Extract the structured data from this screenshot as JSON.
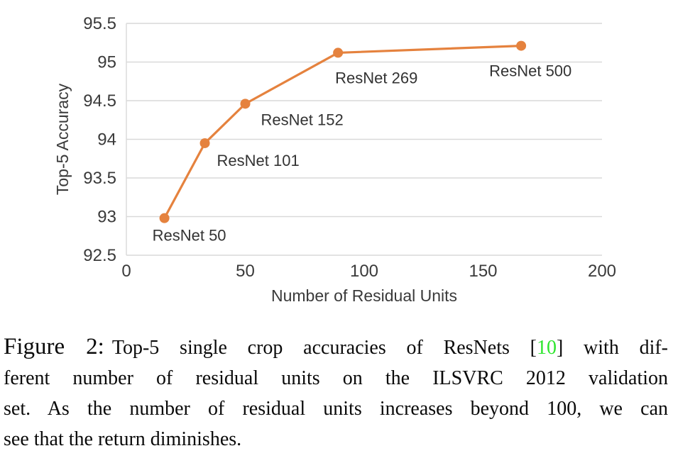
{
  "colors": {
    "series_orange": "#E5823E",
    "grid": "#D9D9D9",
    "axis": "#D9D9D9",
    "tick_text": "#3A3A3A",
    "data_label_text": "#333333",
    "citation_green": "#2EE52E",
    "caption_text": "#0A0A0A",
    "background": "#FFFFFF"
  },
  "chart_data": {
    "type": "line",
    "title": "",
    "xlabel": "Number of Residual Units",
    "ylabel": "Top-5 Accuracy",
    "xlim": [
      0,
      200
    ],
    "ylim": [
      92.5,
      95.5
    ],
    "xticks": [
      0,
      50,
      100,
      150,
      200
    ],
    "yticks": [
      92.5,
      93,
      93.5,
      94,
      94.5,
      95,
      95.5
    ],
    "grid": "horizontal-only",
    "legend": "none",
    "series": [
      {
        "name": "ResNet Top-5 accuracy",
        "color": "#E5823E",
        "points": [
          {
            "x": 16,
            "y": 92.98,
            "label": "ResNet 50",
            "label_offset": [
              -17,
              32
            ]
          },
          {
            "x": 33,
            "y": 93.95,
            "label": "ResNet 101",
            "label_offset": [
              17,
              32
            ]
          },
          {
            "x": 50,
            "y": 94.46,
            "label": "ResNet 152",
            "label_offset": [
              22,
              30
            ]
          },
          {
            "x": 89,
            "y": 95.12,
            "label": "ResNet 269",
            "label_offset": [
              -4,
              43
            ]
          },
          {
            "x": 166,
            "y": 95.21,
            "label": "ResNet 500",
            "label_offset": [
              -45,
              43
            ]
          }
        ]
      }
    ]
  },
  "caption": {
    "label": "Figure 2:",
    "line1_before": "Top-5 single crop accuracies of ResNets [",
    "citation": "10",
    "line1_after": "] with dif-",
    "line2": "ferent number of residual units on the ILSVRC 2012 validation",
    "line3": "set. As the number of residual units increases beyond 100, we can",
    "line4": "see that the return diminishes."
  }
}
